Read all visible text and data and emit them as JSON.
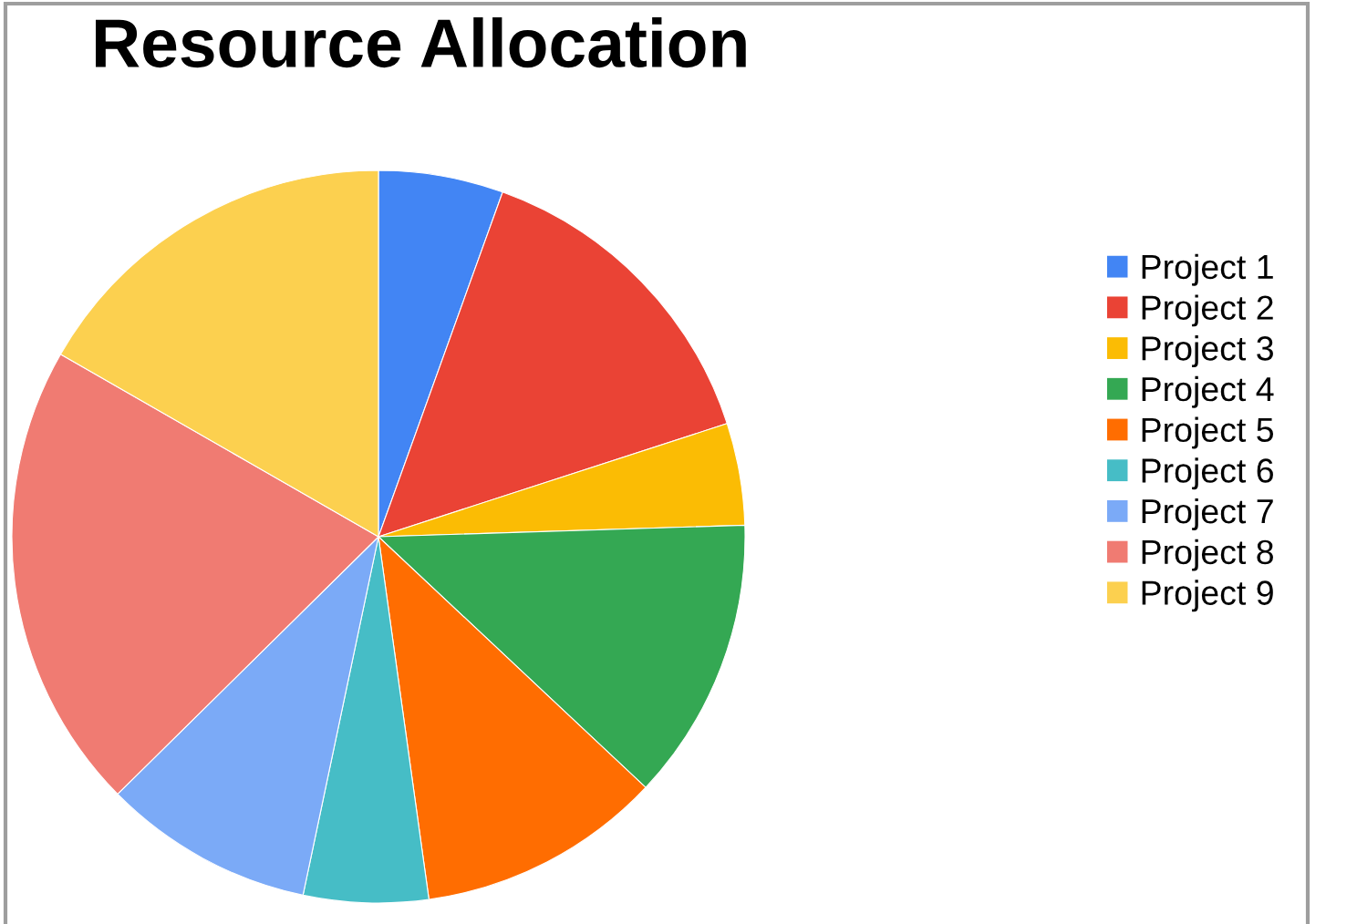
{
  "chart_data": {
    "type": "pie",
    "title": "Resource Allocation",
    "categories": [
      "Project 1",
      "Project 2",
      "Project 3",
      "Project 4",
      "Project 5",
      "Project 6",
      "Project 7",
      "Project 8",
      "Project 9"
    ],
    "values": [
      5.5,
      14.5,
      4.5,
      12.5,
      10.8,
      5.5,
      9.3,
      20.7,
      16.7
    ],
    "colors": [
      "#4285f4",
      "#ea4335",
      "#fbbc04",
      "#34a853",
      "#ff6d01",
      "#46bdc6",
      "#7baaf7",
      "#f07b72",
      "#fcd04f"
    ],
    "legend": "right"
  }
}
